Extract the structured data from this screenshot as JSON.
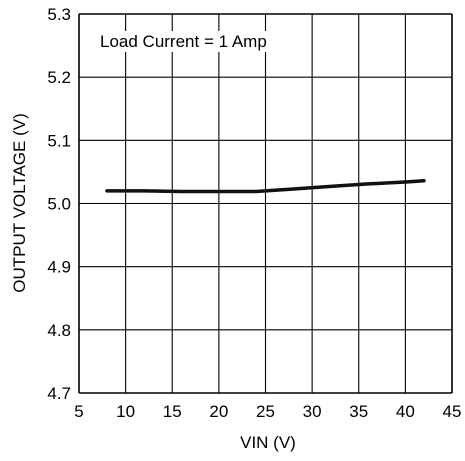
{
  "chart_data": {
    "type": "line",
    "xlabel": "VIN (V)",
    "ylabel": "OUTPUT VOLTAGE (V)",
    "xlim": [
      5,
      45
    ],
    "ylim": [
      4.7,
      5.3
    ],
    "x_ticks": [
      "5",
      "10",
      "15",
      "20",
      "25",
      "30",
      "35",
      "40",
      "45"
    ],
    "y_ticks": [
      "5.3",
      "5.2",
      "5.1",
      "5.0",
      "4.9",
      "4.8",
      "4.7"
    ],
    "grid": true,
    "annotation": "Load Current = 1 Amp",
    "series": [
      {
        "points": [
          {
            "x": 8,
            "y": 5.02
          },
          {
            "x": 12,
            "y": 5.02
          },
          {
            "x": 16,
            "y": 5.019
          },
          {
            "x": 20,
            "y": 5.019
          },
          {
            "x": 24,
            "y": 5.019
          },
          {
            "x": 25,
            "y": 5.02
          },
          {
            "x": 28,
            "y": 5.023
          },
          {
            "x": 32,
            "y": 5.027
          },
          {
            "x": 36,
            "y": 5.031
          },
          {
            "x": 40,
            "y": 5.034
          },
          {
            "x": 42,
            "y": 5.036
          }
        ]
      }
    ],
    "colors": {
      "line": "#111111",
      "grid": "#000000"
    }
  }
}
